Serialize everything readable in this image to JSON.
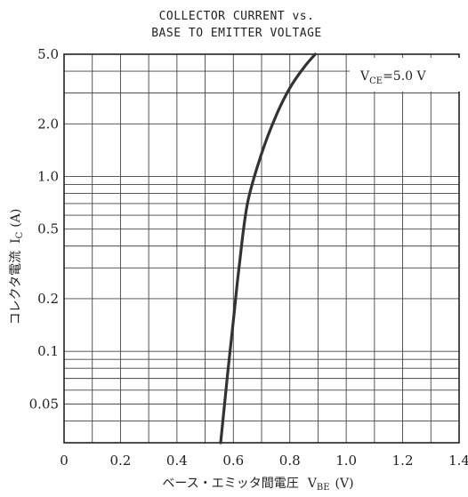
{
  "chart_data": {
    "type": "line",
    "title_line1": "COLLECTOR CURRENT vs.",
    "title_line2": "BASE TO EMITTER VOLTAGE",
    "xlabel": {
      "main": "ベース・エミッタ間電圧",
      "sym": "V",
      "sub": "BE",
      "unit": "(V)"
    },
    "ylabel": {
      "main": "コレクタ電流",
      "sym": "I",
      "sub": "C",
      "unit": "(A)"
    },
    "annotation": {
      "sym": "V",
      "sub": "CE",
      "rest": "=5.0 V"
    },
    "xlim": [
      0,
      1.4
    ],
    "ylim": [
      0.03,
      5.0
    ],
    "yscale": "log",
    "grid": true,
    "x_ticks": [
      {
        "value": 0,
        "label": "0"
      },
      {
        "value": 0.2,
        "label": "0.2"
      },
      {
        "value": 0.4,
        "label": "0.4"
      },
      {
        "value": 0.6,
        "label": "0.6"
      },
      {
        "value": 0.8,
        "label": "0.8"
      },
      {
        "value": 1.0,
        "label": "1.0"
      },
      {
        "value": 1.2,
        "label": "1.2"
      },
      {
        "value": 1.4,
        "label": "1.4"
      }
    ],
    "y_ticks": [
      {
        "value": 5.0,
        "label": "5.0"
      },
      {
        "value": 2.0,
        "label": "2.0"
      },
      {
        "value": 1.0,
        "label": "1.0"
      },
      {
        "value": 0.5,
        "label": "0.5"
      },
      {
        "value": 0.2,
        "label": "0.2"
      },
      {
        "value": 0.1,
        "label": "0.1"
      },
      {
        "value": 0.05,
        "label": "0.05"
      }
    ],
    "x_grid": [
      0.1,
      0.2,
      0.3,
      0.4,
      0.5,
      0.6,
      0.7,
      0.8,
      0.9,
      1.0,
      1.1,
      1.2,
      1.3
    ],
    "y_grid": [
      0.04,
      0.05,
      0.06,
      0.07,
      0.08,
      0.09,
      0.1,
      0.2,
      0.3,
      0.4,
      0.5,
      0.6,
      0.7,
      0.8,
      0.9,
      1.0,
      2.0,
      3.0,
      4.0
    ],
    "series": [
      {
        "x": [
          0.555,
          0.58,
          0.6,
          0.62,
          0.65,
          0.7,
          0.75,
          0.8,
          0.85,
          0.89
        ],
        "y": [
          0.03,
          0.075,
          0.15,
          0.3,
          0.7,
          1.35,
          2.2,
          3.2,
          4.2,
          5.0
        ],
        "color": "#333333"
      }
    ]
  }
}
